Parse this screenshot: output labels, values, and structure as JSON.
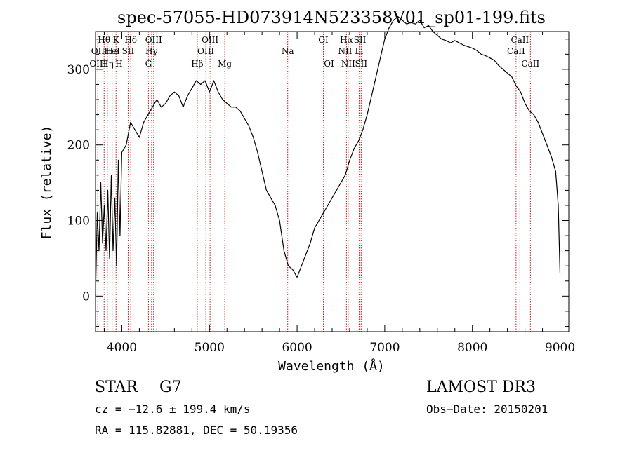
{
  "chart_data": {
    "type": "line",
    "title": "spec-57055-HD073914N523358V01_sp01-199.fits",
    "xlabel": "Wavelength (Å)",
    "ylabel": "Flux (relative)",
    "xlim": [
      3700,
      9100
    ],
    "ylim": [
      -47,
      350
    ],
    "x_ticks": [
      4000,
      5000,
      6000,
      7000,
      8000,
      9000
    ],
    "y_ticks": [
      0,
      100,
      200,
      300
    ],
    "grid": false,
    "series": [
      {
        "x": [
          3700,
          3720,
          3740,
          3760,
          3780,
          3800,
          3820,
          3840,
          3860,
          3880,
          3900,
          3920,
          3940,
          3960,
          3980,
          4000,
          4050,
          4100,
          4150,
          4200,
          4250,
          4300,
          4350,
          4400,
          4450,
          4500,
          4550,
          4600,
          4650,
          4700,
          4750,
          4800,
          4850,
          4900,
          4950,
          5000,
          5050,
          5100,
          5150,
          5200,
          5250,
          5300,
          5350,
          5400,
          5450,
          5500,
          5550,
          5600,
          5650,
          5700,
          5750,
          5800,
          5850,
          5900,
          5950,
          6000,
          6050,
          6100,
          6150,
          6200,
          6250,
          6300,
          6350,
          6400,
          6450,
          6500,
          6550,
          6600,
          6650,
          6700,
          6750,
          6800,
          6850,
          6900,
          6950,
          7000,
          7050,
          7100,
          7150,
          7200,
          7250,
          7300,
          7350,
          7400,
          7450,
          7500,
          7550,
          7600,
          7650,
          7700,
          7750,
          7800,
          7850,
          7900,
          7950,
          8000,
          8050,
          8100,
          8150,
          8200,
          8250,
          8300,
          8350,
          8400,
          8450,
          8500,
          8550,
          8600,
          8650,
          8700,
          8750,
          8800,
          8850,
          8900,
          8950,
          8980,
          9000
        ],
        "y": [
          0,
          110,
          60,
          150,
          70,
          120,
          60,
          140,
          50,
          160,
          60,
          130,
          40,
          180,
          80,
          190,
          200,
          230,
          220,
          210,
          230,
          240,
          250,
          260,
          250,
          255,
          265,
          270,
          265,
          250,
          265,
          275,
          285,
          280,
          285,
          270,
          285,
          270,
          260,
          255,
          250,
          250,
          245,
          235,
          225,
          210,
          190,
          165,
          140,
          130,
          120,
          100,
          60,
          40,
          35,
          25,
          40,
          55,
          70,
          90,
          100,
          110,
          120,
          130,
          140,
          150,
          160,
          180,
          195,
          205,
          220,
          240,
          265,
          290,
          315,
          340,
          355,
          365,
          370,
          365,
          360,
          362,
          360,
          365,
          355,
          358,
          350,
          345,
          340,
          338,
          335,
          338,
          335,
          332,
          330,
          328,
          325,
          320,
          318,
          315,
          312,
          305,
          300,
          295,
          290,
          278,
          270,
          255,
          245,
          240,
          230,
          215,
          200,
          185,
          165,
          120,
          30
        ]
      }
    ],
    "lines": [
      {
        "name": "Hθ",
        "x": 3798,
        "row": 1
      },
      {
        "name": "OII",
        "x": 3727,
        "row": 2
      },
      {
        "name": "OIII",
        "x": 3727,
        "row": 3
      },
      {
        "name": "He",
        "x": 3889,
        "row": 2
      },
      {
        "name": "Hη",
        "x": 3835,
        "row": 3
      },
      {
        "name": "K",
        "x": 3934,
        "row": 1
      },
      {
        "name": "HeI",
        "x": 3889,
        "row": 2
      },
      {
        "name": "H",
        "x": 3968,
        "row": 3
      },
      {
        "name": "SII",
        "x": 4072,
        "row": 2
      },
      {
        "name": "Hδ",
        "x": 4102,
        "row": 1
      },
      {
        "name": "OIII",
        "x": 4363,
        "row": 1
      },
      {
        "name": "Hγ",
        "x": 4340,
        "row": 2
      },
      {
        "name": "G",
        "x": 4304,
        "row": 3
      },
      {
        "name": "Hβ",
        "x": 4861,
        "row": 3
      },
      {
        "name": "OIII",
        "x": 5007,
        "row": 1
      },
      {
        "name": "OIII",
        "x": 4959,
        "row": 2
      },
      {
        "name": "Mg",
        "x": 5175,
        "row": 3
      },
      {
        "name": "Na",
        "x": 5893,
        "row": 2
      },
      {
        "name": "OI",
        "x": 6300,
        "row": 1
      },
      {
        "name": "OI",
        "x": 6364,
        "row": 3
      },
      {
        "name": "Hα",
        "x": 6563,
        "row": 1
      },
      {
        "name": "SII",
        "x": 6717,
        "row": 1
      },
      {
        "name": "NII",
        "x": 6548,
        "row": 2
      },
      {
        "name": "Li",
        "x": 6708,
        "row": 2
      },
      {
        "name": "NII",
        "x": 6583,
        "row": 3
      },
      {
        "name": "SII",
        "x": 6731,
        "row": 3
      },
      {
        "name": "CaII",
        "x": 8542,
        "row": 1
      },
      {
        "name": "CaII",
        "x": 8498,
        "row": 2
      },
      {
        "name": "CaII",
        "x": 8662,
        "row": 3
      }
    ]
  },
  "info": {
    "class_label": "STAR",
    "subclass_label": "G7",
    "survey": "LAMOST DR3",
    "velocity": "cz = −12.6 ± 199.4 km/s",
    "obs_date": "Obs−Date: 20150201",
    "coords": "RA = 115.82881, DEC =  50.19356"
  },
  "colors": {
    "spectrum": "#000000",
    "line_markers": "#b22222",
    "background": "#ffffff"
  }
}
